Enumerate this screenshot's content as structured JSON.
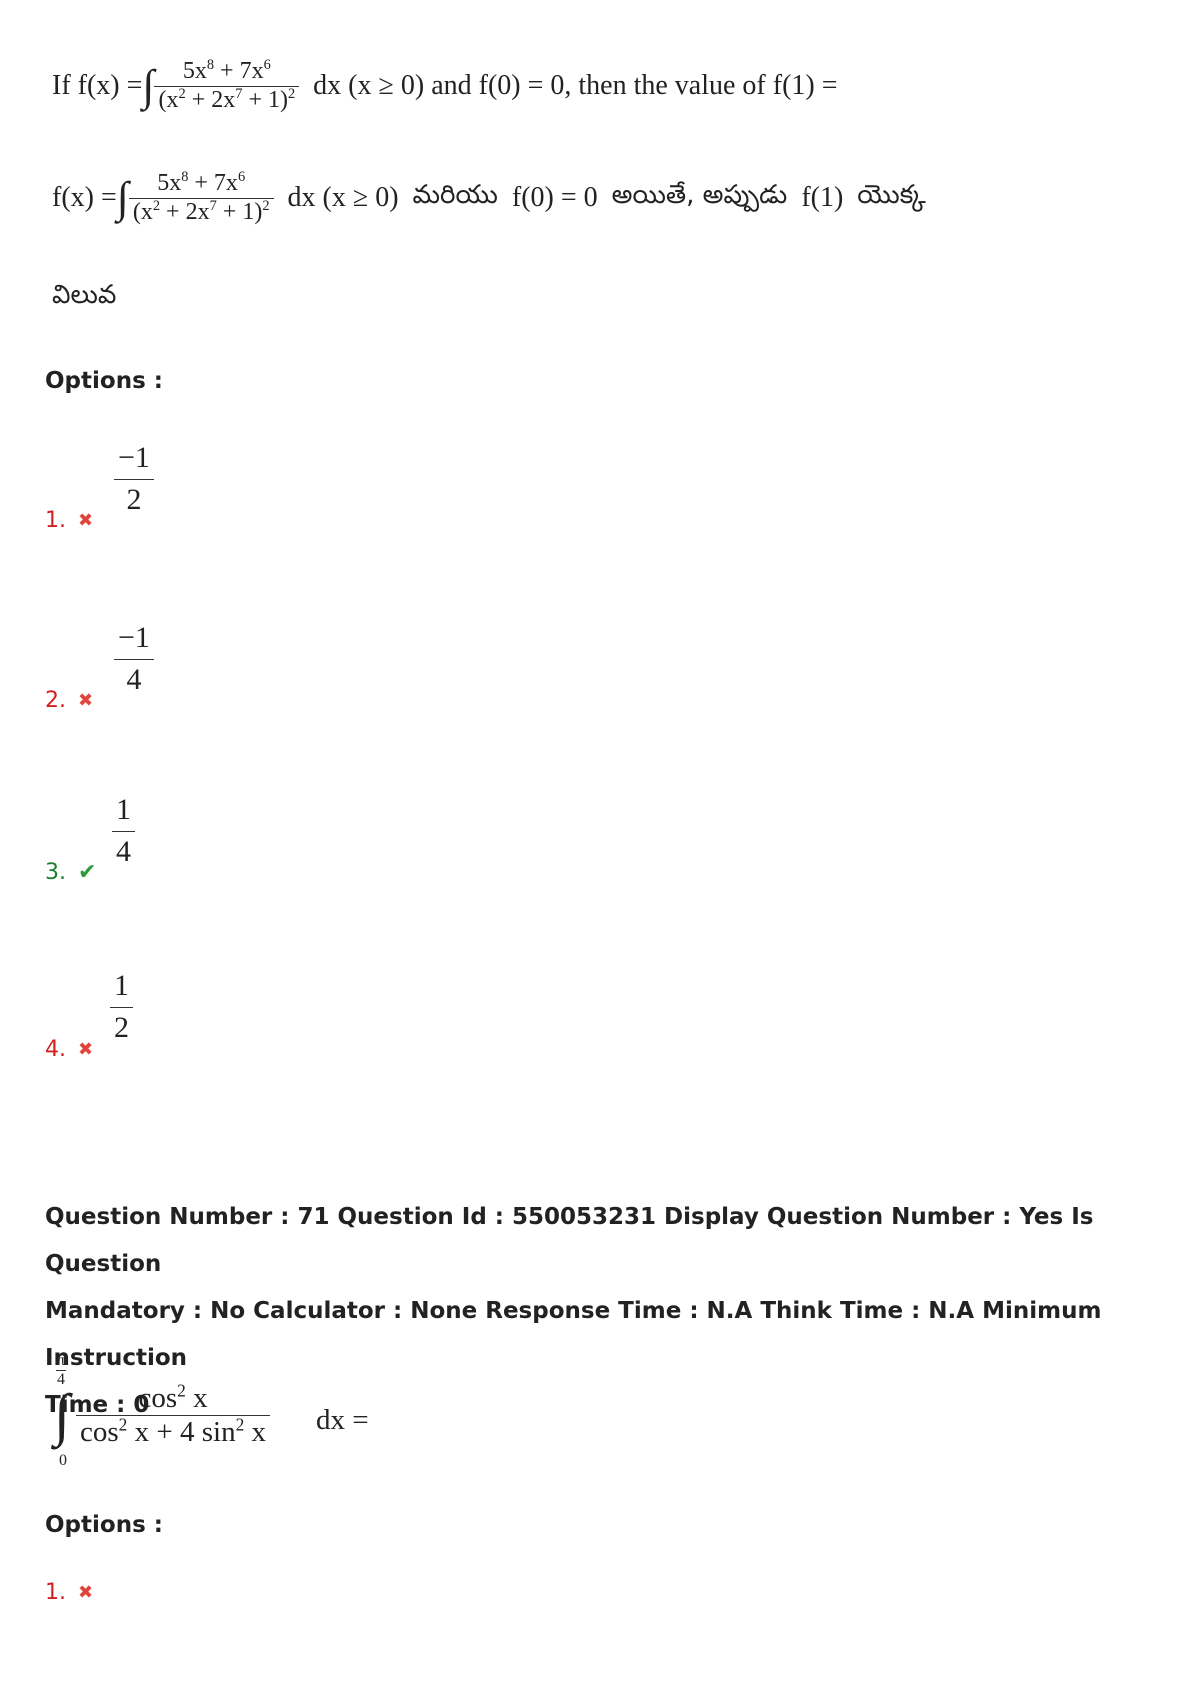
{
  "q70": {
    "en_line": {
      "lead": "If  f(x) = ",
      "int": "∫",
      "num_html": "5x<sup>8</sup> + 7x<sup>6</sup>",
      "den_html": "(x<sup>2</sup> + 2x<sup>7</sup> + 1)<sup>2</sup>",
      "tail": "dx (x ≥ 0)  and  f(0) = 0,  then the value of  f(1) ="
    },
    "te_line": {
      "lead": "f(x) = ",
      "int": "∫",
      "num_html": "5x<sup>8</sup> + 7x<sup>6</sup>",
      "den_html": "(x<sup>2</sup> + 2x<sup>7</sup> + 1)<sup>2</sup>",
      "mid": "dx (x ≥ 0)",
      "word1": "మరియు",
      "cond": "f(0) = 0",
      "word2": "అయితే, అప్పుడు",
      "f1": "f(1)",
      "word3": "యొక్క",
      "word4": "విలువ"
    },
    "options_heading": "Options :",
    "options": [
      {
        "num": "1.",
        "mark": "✖",
        "numerator": "−1",
        "denominator": "2"
      },
      {
        "num": "2.",
        "mark": "✖",
        "numerator": "−1",
        "denominator": "4"
      },
      {
        "num": "3.",
        "mark": "✔",
        "numerator": "1",
        "denominator": "4"
      },
      {
        "num": "4.",
        "mark": "✖",
        "numerator": "1",
        "denominator": "2"
      }
    ]
  },
  "q71": {
    "meta_line1": "Question Number : 71 Question Id : 550053231 Display Question Number : Yes Is Question",
    "meta_line2": "Mandatory : No Calculator : None Response Time : N.A Think Time : N.A Minimum Instruction",
    "meta_line3": "Time : 0",
    "integral": {
      "upper_num": "π",
      "upper_den": "4",
      "lower": "0",
      "int": "∫",
      "num_html": "cos<sup>2</sup> x",
      "den_html": "cos<sup>2</sup> x + 4 sin<sup>2</sup> x",
      "tail": "dx ="
    },
    "options_heading": "Options :",
    "options": [
      {
        "num": "1.",
        "mark": "✖"
      }
    ]
  }
}
